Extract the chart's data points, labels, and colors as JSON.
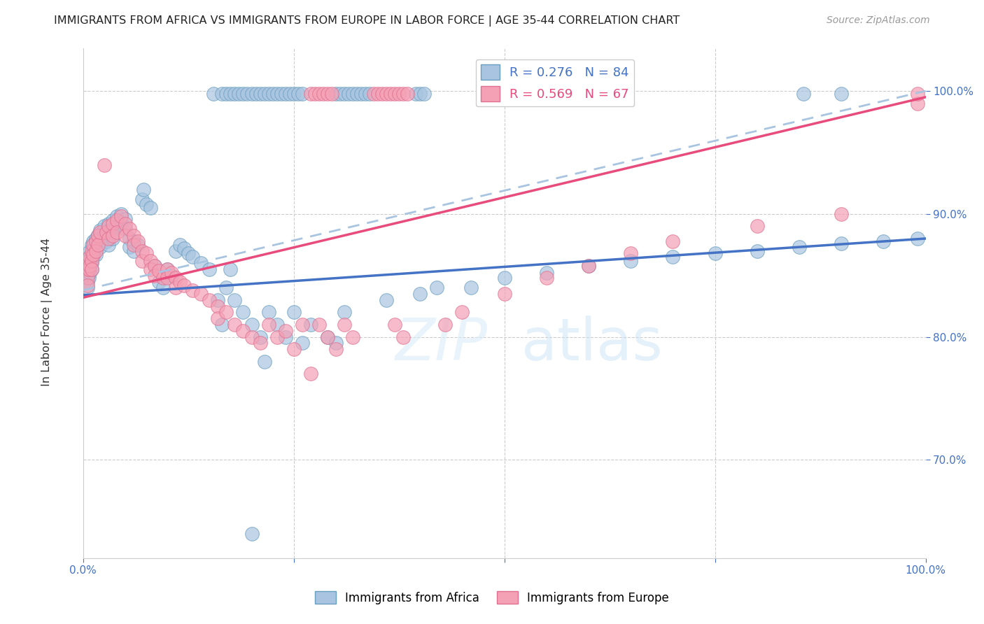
{
  "title": "IMMIGRANTS FROM AFRICA VS IMMIGRANTS FROM EUROPE IN LABOR FORCE | AGE 35-44 CORRELATION CHART",
  "source": "Source: ZipAtlas.com",
  "ylabel": "In Labor Force | Age 35-44",
  "africa_color": "#a8c4e0",
  "africa_edge_color": "#6a9fc0",
  "europe_color": "#f4a0b5",
  "europe_edge_color": "#e07090",
  "africa_line_color": "#4472c4",
  "europe_line_color": "#e84c7d",
  "dashed_line_color": "#a8c4e0",
  "grid_color": "#cccccc",
  "tick_color": "#4472c4",
  "watermark_color": "#ddeeff",
  "x_range": [
    0.0,
    1.0
  ],
  "y_range": [
    0.62,
    1.035
  ],
  "y_ticks": [
    0.7,
    0.8,
    0.9,
    1.0
  ],
  "y_tick_labels": [
    "70.0%",
    "80.0%",
    "90.0%",
    "100.0%"
  ],
  "africa_line": [
    0.0,
    0.834,
    1.0,
    0.88
  ],
  "europe_line": [
    0.0,
    0.832,
    1.0,
    0.995
  ],
  "dashed_line": [
    0.0,
    0.838,
    1.0,
    1.0
  ],
  "africa_scatter": [
    [
      0.005,
      0.855
    ],
    [
      0.005,
      0.85
    ],
    [
      0.005,
      0.845
    ],
    [
      0.005,
      0.84
    ],
    [
      0.005,
      0.86
    ],
    [
      0.007,
      0.865
    ],
    [
      0.007,
      0.855
    ],
    [
      0.007,
      0.848
    ],
    [
      0.008,
      0.87
    ],
    [
      0.008,
      0.858
    ],
    [
      0.008,
      0.852
    ],
    [
      0.01,
      0.875
    ],
    [
      0.01,
      0.865
    ],
    [
      0.01,
      0.86
    ],
    [
      0.01,
      0.855
    ],
    [
      0.012,
      0.878
    ],
    [
      0.012,
      0.87
    ],
    [
      0.012,
      0.865
    ],
    [
      0.015,
      0.88
    ],
    [
      0.015,
      0.872
    ],
    [
      0.015,
      0.867
    ],
    [
      0.018,
      0.883
    ],
    [
      0.018,
      0.875
    ],
    [
      0.02,
      0.887
    ],
    [
      0.02,
      0.88
    ],
    [
      0.02,
      0.873
    ],
    [
      0.025,
      0.89
    ],
    [
      0.025,
      0.882
    ],
    [
      0.028,
      0.885
    ],
    [
      0.028,
      0.878
    ],
    [
      0.03,
      0.892
    ],
    [
      0.03,
      0.886
    ],
    [
      0.03,
      0.875
    ],
    [
      0.035,
      0.895
    ],
    [
      0.035,
      0.888
    ],
    [
      0.035,
      0.88
    ],
    [
      0.04,
      0.898
    ],
    [
      0.04,
      0.89
    ],
    [
      0.045,
      0.9
    ],
    [
      0.045,
      0.893
    ],
    [
      0.05,
      0.896
    ],
    [
      0.05,
      0.888
    ],
    [
      0.055,
      0.88
    ],
    [
      0.055,
      0.873
    ],
    [
      0.06,
      0.878
    ],
    [
      0.06,
      0.87
    ],
    [
      0.065,
      0.875
    ],
    [
      0.07,
      0.912
    ],
    [
      0.072,
      0.92
    ],
    [
      0.075,
      0.908
    ],
    [
      0.08,
      0.905
    ],
    [
      0.085,
      0.858
    ],
    [
      0.09,
      0.845
    ],
    [
      0.095,
      0.84
    ],
    [
      0.1,
      0.855
    ],
    [
      0.105,
      0.85
    ],
    [
      0.11,
      0.87
    ],
    [
      0.115,
      0.875
    ],
    [
      0.12,
      0.872
    ],
    [
      0.125,
      0.868
    ],
    [
      0.13,
      0.865
    ],
    [
      0.14,
      0.86
    ],
    [
      0.15,
      0.855
    ],
    [
      0.16,
      0.83
    ],
    [
      0.165,
      0.81
    ],
    [
      0.17,
      0.84
    ],
    [
      0.175,
      0.855
    ],
    [
      0.18,
      0.83
    ],
    [
      0.19,
      0.82
    ],
    [
      0.2,
      0.81
    ],
    [
      0.21,
      0.8
    ],
    [
      0.215,
      0.78
    ],
    [
      0.22,
      0.82
    ],
    [
      0.23,
      0.81
    ],
    [
      0.24,
      0.8
    ],
    [
      0.25,
      0.82
    ],
    [
      0.26,
      0.795
    ],
    [
      0.27,
      0.81
    ],
    [
      0.29,
      0.8
    ],
    [
      0.3,
      0.795
    ],
    [
      0.31,
      0.82
    ],
    [
      0.36,
      0.83
    ],
    [
      0.4,
      0.835
    ],
    [
      0.42,
      0.84
    ],
    [
      0.46,
      0.84
    ],
    [
      0.5,
      0.848
    ],
    [
      0.55,
      0.852
    ],
    [
      0.6,
      0.858
    ],
    [
      0.65,
      0.862
    ],
    [
      0.7,
      0.865
    ],
    [
      0.75,
      0.868
    ],
    [
      0.8,
      0.87
    ],
    [
      0.85,
      0.873
    ],
    [
      0.9,
      0.876
    ],
    [
      0.95,
      0.878
    ],
    [
      0.99,
      0.88
    ],
    [
      0.2,
      0.64
    ]
  ],
  "europe_scatter": [
    [
      0.005,
      0.855
    ],
    [
      0.005,
      0.848
    ],
    [
      0.005,
      0.842
    ],
    [
      0.007,
      0.862
    ],
    [
      0.007,
      0.855
    ],
    [
      0.008,
      0.865
    ],
    [
      0.008,
      0.858
    ],
    [
      0.01,
      0.87
    ],
    [
      0.01,
      0.862
    ],
    [
      0.01,
      0.855
    ],
    [
      0.012,
      0.875
    ],
    [
      0.012,
      0.867
    ],
    [
      0.015,
      0.878
    ],
    [
      0.015,
      0.87
    ],
    [
      0.018,
      0.882
    ],
    [
      0.018,
      0.875
    ],
    [
      0.02,
      0.885
    ],
    [
      0.025,
      0.94
    ],
    [
      0.028,
      0.885
    ],
    [
      0.03,
      0.89
    ],
    [
      0.03,
      0.88
    ],
    [
      0.035,
      0.892
    ],
    [
      0.035,
      0.882
    ],
    [
      0.04,
      0.895
    ],
    [
      0.04,
      0.885
    ],
    [
      0.045,
      0.898
    ],
    [
      0.05,
      0.892
    ],
    [
      0.05,
      0.882
    ],
    [
      0.055,
      0.888
    ],
    [
      0.06,
      0.882
    ],
    [
      0.06,
      0.875
    ],
    [
      0.065,
      0.878
    ],
    [
      0.07,
      0.87
    ],
    [
      0.07,
      0.862
    ],
    [
      0.075,
      0.868
    ],
    [
      0.08,
      0.862
    ],
    [
      0.08,
      0.855
    ],
    [
      0.085,
      0.858
    ],
    [
      0.085,
      0.85
    ],
    [
      0.09,
      0.854
    ],
    [
      0.095,
      0.848
    ],
    [
      0.1,
      0.855
    ],
    [
      0.1,
      0.848
    ],
    [
      0.105,
      0.852
    ],
    [
      0.11,
      0.848
    ],
    [
      0.11,
      0.84
    ],
    [
      0.115,
      0.845
    ],
    [
      0.12,
      0.842
    ],
    [
      0.13,
      0.838
    ],
    [
      0.14,
      0.835
    ],
    [
      0.15,
      0.83
    ],
    [
      0.16,
      0.825
    ],
    [
      0.16,
      0.815
    ],
    [
      0.17,
      0.82
    ],
    [
      0.18,
      0.81
    ],
    [
      0.19,
      0.805
    ],
    [
      0.2,
      0.8
    ],
    [
      0.21,
      0.795
    ],
    [
      0.22,
      0.81
    ],
    [
      0.23,
      0.8
    ],
    [
      0.24,
      0.805
    ],
    [
      0.25,
      0.79
    ],
    [
      0.26,
      0.81
    ],
    [
      0.27,
      0.77
    ],
    [
      0.28,
      0.81
    ],
    [
      0.29,
      0.8
    ],
    [
      0.3,
      0.79
    ],
    [
      0.31,
      0.81
    ],
    [
      0.32,
      0.8
    ],
    [
      0.37,
      0.81
    ],
    [
      0.38,
      0.8
    ],
    [
      0.43,
      0.81
    ],
    [
      0.45,
      0.82
    ],
    [
      0.5,
      0.835
    ],
    [
      0.55,
      0.848
    ],
    [
      0.6,
      0.858
    ],
    [
      0.65,
      0.868
    ],
    [
      0.7,
      0.878
    ],
    [
      0.8,
      0.89
    ],
    [
      0.9,
      0.9
    ],
    [
      0.99,
      0.99
    ]
  ],
  "top_africa_scatter": [
    [
      0.155,
      0.998
    ],
    [
      0.165,
      0.998
    ],
    [
      0.17,
      0.998
    ],
    [
      0.175,
      0.998
    ],
    [
      0.18,
      0.998
    ],
    [
      0.185,
      0.998
    ],
    [
      0.19,
      0.998
    ],
    [
      0.195,
      0.998
    ],
    [
      0.2,
      0.998
    ],
    [
      0.205,
      0.998
    ],
    [
      0.21,
      0.998
    ],
    [
      0.215,
      0.998
    ],
    [
      0.22,
      0.998
    ],
    [
      0.225,
      0.998
    ],
    [
      0.23,
      0.998
    ],
    [
      0.235,
      0.998
    ],
    [
      0.24,
      0.998
    ],
    [
      0.245,
      0.998
    ],
    [
      0.25,
      0.998
    ],
    [
      0.255,
      0.998
    ],
    [
      0.26,
      0.998
    ],
    [
      0.3,
      0.998
    ],
    [
      0.305,
      0.998
    ],
    [
      0.31,
      0.998
    ],
    [
      0.315,
      0.998
    ],
    [
      0.32,
      0.998
    ],
    [
      0.325,
      0.998
    ],
    [
      0.33,
      0.998
    ],
    [
      0.335,
      0.998
    ],
    [
      0.34,
      0.998
    ],
    [
      0.395,
      0.998
    ],
    [
      0.4,
      0.998
    ],
    [
      0.405,
      0.998
    ],
    [
      0.855,
      0.998
    ],
    [
      0.9,
      0.998
    ]
  ],
  "top_europe_scatter": [
    [
      0.27,
      0.998
    ],
    [
      0.275,
      0.998
    ],
    [
      0.28,
      0.998
    ],
    [
      0.285,
      0.998
    ],
    [
      0.29,
      0.998
    ],
    [
      0.295,
      0.998
    ],
    [
      0.345,
      0.998
    ],
    [
      0.35,
      0.998
    ],
    [
      0.355,
      0.998
    ],
    [
      0.36,
      0.998
    ],
    [
      0.365,
      0.998
    ],
    [
      0.37,
      0.998
    ],
    [
      0.375,
      0.998
    ],
    [
      0.38,
      0.998
    ],
    [
      0.385,
      0.998
    ],
    [
      0.99,
      0.998
    ]
  ]
}
